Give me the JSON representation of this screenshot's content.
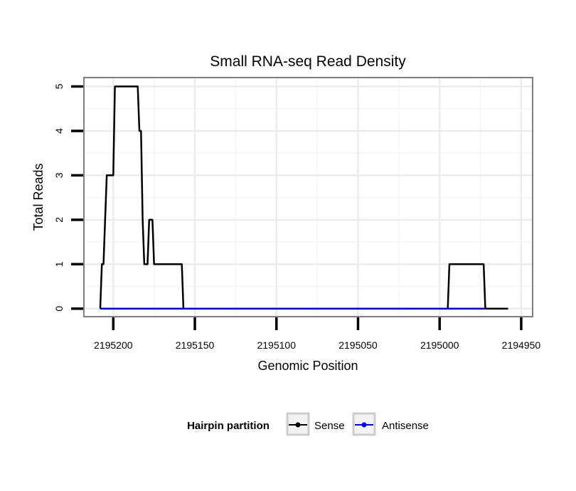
{
  "chart_data": {
    "type": "line",
    "title": "Small RNA-seq Read Density",
    "xlabel": "Genomic Position",
    "ylabel": "Total Reads",
    "x_reversed": true,
    "xlim": [
      2195218,
      2194943
    ],
    "ylim": [
      -0.18,
      5.2
    ],
    "x_ticks": [
      2195200,
      2195150,
      2195100,
      2195050,
      2195000,
      2194950
    ],
    "x_tick_labels": [
      "2195200",
      "2195150",
      "2195100",
      "2195050",
      "2195000",
      "2194950"
    ],
    "y_ticks": [
      0,
      1,
      2,
      3,
      4,
      5
    ],
    "y_tick_labels": [
      "0",
      "1",
      "2",
      "3",
      "4",
      "5"
    ],
    "grid": true,
    "legend": {
      "title": "Hairpin partition",
      "position": "bottom"
    },
    "series": [
      {
        "name": "Sense",
        "color": "#000000",
        "x": [
          2195208,
          2195207,
          2195206,
          2195205,
          2195204,
          2195203,
          2195200,
          2195199,
          2195198,
          2195185,
          2195184,
          2195183,
          2195182,
          2195181,
          2195179,
          2195178,
          2195176,
          2195175,
          2195172,
          2195171,
          2195168,
          2195158,
          2195157,
          2194995,
          2194994,
          2194973,
          2194972,
          2194958
        ],
        "y": [
          0,
          1,
          1,
          2,
          3,
          3,
          3,
          5,
          5,
          5,
          4,
          4,
          2,
          1,
          1,
          2,
          2,
          1,
          1,
          1,
          1,
          1,
          0,
          0,
          1,
          1,
          0,
          0
        ]
      },
      {
        "name": "Antisense",
        "color": "#0000ff",
        "x": [
          2195208,
          2195157,
          2194995,
          2194972
        ],
        "y": [
          0,
          0,
          0,
          0
        ]
      }
    ]
  }
}
